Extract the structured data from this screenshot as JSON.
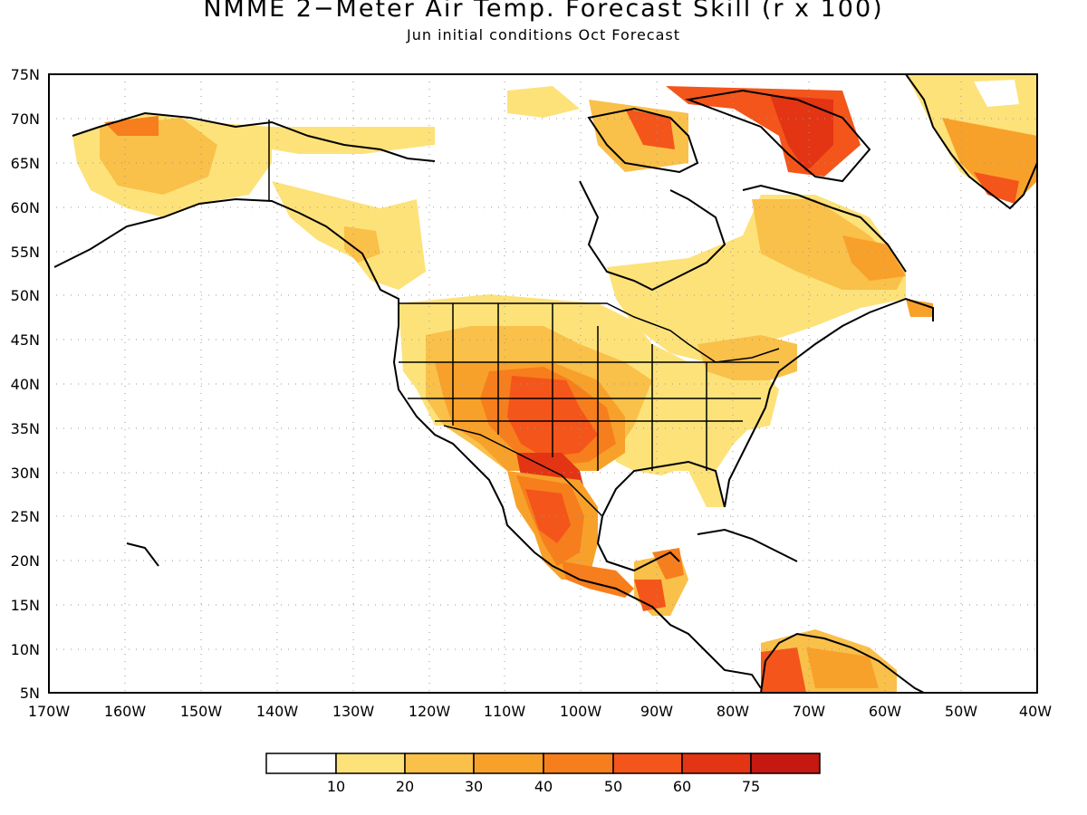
{
  "title": "NMME 2−Meter Air Temp. Forecast Skill (r x 100)",
  "subtitle": "Jun initial conditions  Oct Forecast",
  "map": {
    "lon_range": [
      -170,
      -40
    ],
    "lat_range": [
      5,
      75
    ],
    "lat_labels": [
      "75N",
      "70N",
      "65N",
      "60N",
      "55N",
      "50N",
      "45N",
      "40N",
      "35N",
      "30N",
      "25N",
      "20N",
      "15N",
      "10N",
      "5N"
    ],
    "lon_labels": [
      "170W",
      "160W",
      "150W",
      "140W",
      "130W",
      "120W",
      "110W",
      "100W",
      "90W",
      "80W",
      "70W",
      "60W",
      "50W",
      "40W"
    ],
    "grid": "dotted"
  },
  "legend": {
    "colors": [
      "#ffffff",
      "#fde27a",
      "#f9c04a",
      "#f8a12a",
      "#f77e1c",
      "#f4551a",
      "#e33414",
      "#c41810",
      "#a00a0a"
    ],
    "labels": [
      "10",
      "20",
      "30",
      "40",
      "50",
      "60",
      "75"
    ]
  }
}
